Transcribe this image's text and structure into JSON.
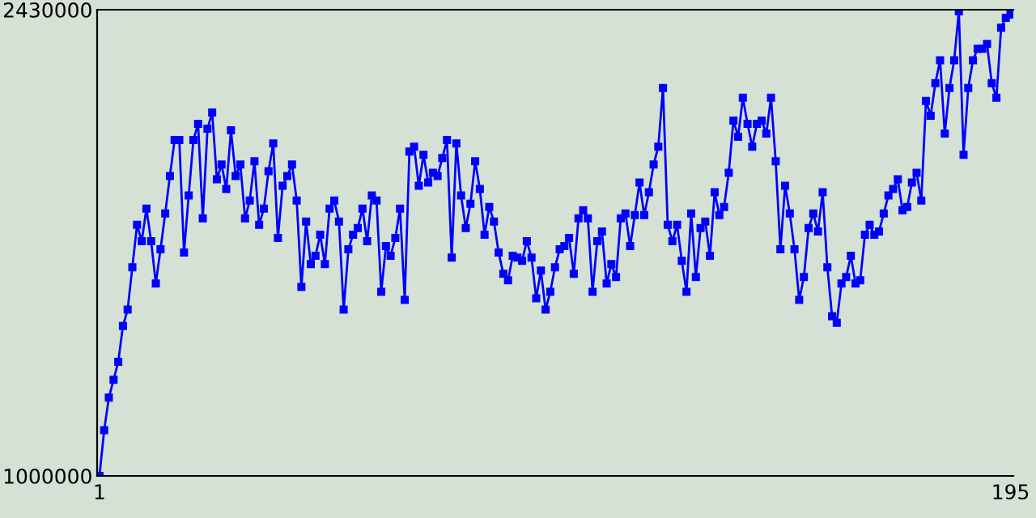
{
  "chart_data": {
    "type": "line",
    "x": [
      1,
      2,
      3,
      4,
      5,
      6,
      7,
      8,
      9,
      10,
      11,
      12,
      13,
      14,
      15,
      16,
      17,
      18,
      19,
      20,
      21,
      22,
      23,
      24,
      25,
      26,
      27,
      28,
      29,
      30,
      31,
      32,
      33,
      34,
      35,
      36,
      37,
      38,
      39,
      40,
      41,
      42,
      43,
      44,
      45,
      46,
      47,
      48,
      49,
      50,
      51,
      52,
      53,
      54,
      55,
      56,
      57,
      58,
      59,
      60,
      61,
      62,
      63,
      64,
      65,
      66,
      67,
      68,
      69,
      70,
      71,
      72,
      73,
      74,
      75,
      76,
      77,
      78,
      79,
      80,
      81,
      82,
      83,
      84,
      85,
      86,
      87,
      88,
      89,
      90,
      91,
      92,
      93,
      94,
      95,
      96,
      97,
      98,
      99,
      100,
      101,
      102,
      103,
      104,
      105,
      106,
      107,
      108,
      109,
      110,
      111,
      112,
      113,
      114,
      115,
      116,
      117,
      118,
      119,
      120,
      121,
      122,
      123,
      124,
      125,
      126,
      127,
      128,
      129,
      130,
      131,
      132,
      133,
      134,
      135,
      136,
      137,
      138,
      139,
      140,
      141,
      142,
      143,
      144,
      145,
      146,
      147,
      148,
      149,
      150,
      151,
      152,
      153,
      154,
      155,
      156,
      157,
      158,
      159,
      160,
      161,
      162,
      163,
      164,
      165,
      166,
      167,
      168,
      169,
      170,
      171,
      172,
      173,
      174,
      175,
      176,
      177,
      178,
      179,
      180,
      181,
      182,
      183,
      184,
      185,
      186,
      187,
      188,
      189,
      190,
      191,
      192,
      193,
      194,
      195
    ],
    "series": [
      {
        "color": "#0000ff",
        "values": [
          1000000,
          1140000,
          1240000,
          1295000,
          1350000,
          1460000,
          1510000,
          1640000,
          1770000,
          1720000,
          1820000,
          1720000,
          1590000,
          1695000,
          1805000,
          1920000,
          2030000,
          2030000,
          1685000,
          1860000,
          2030000,
          2080000,
          1790000,
          2065000,
          2115000,
          1910000,
          1955000,
          1880000,
          2060000,
          1920000,
          1955000,
          1790000,
          1845000,
          1965000,
          1770000,
          1820000,
          1935000,
          2020000,
          1730000,
          1890000,
          1920000,
          1955000,
          1845000,
          1580000,
          1780000,
          1650000,
          1675000,
          1740000,
          1650000,
          1820000,
          1845000,
          1780000,
          1510000,
          1695000,
          1740000,
          1760000,
          1820000,
          1720000,
          1860000,
          1845000,
          1565000,
          1705000,
          1675000,
          1730000,
          1820000,
          1540000,
          1995000,
          2010000,
          1890000,
          1985000,
          1900000,
          1930000,
          1920000,
          1975000,
          2030000,
          1670000,
          2020000,
          1860000,
          1760000,
          1835000,
          1965000,
          1880000,
          1740000,
          1825000,
          1780000,
          1685000,
          1620000,
          1600000,
          1675000,
          1670000,
          1660000,
          1720000,
          1670000,
          1545000,
          1630000,
          1510000,
          1565000,
          1640000,
          1695000,
          1705000,
          1730000,
          1620000,
          1790000,
          1815000,
          1790000,
          1565000,
          1720000,
          1750000,
          1590000,
          1650000,
          1610000,
          1790000,
          1805000,
          1705000,
          1800000,
          1900000,
          1800000,
          1870000,
          1955000,
          2010000,
          2190000,
          1770000,
          1720000,
          1770000,
          1660000,
          1565000,
          1805000,
          1610000,
          1760000,
          1780000,
          1675000,
          1870000,
          1800000,
          1825000,
          1930000,
          2090000,
          2040000,
          2160000,
          2080000,
          2010000,
          2080000,
          2090000,
          2050000,
          2160000,
          1965000,
          1695000,
          1890000,
          1805000,
          1695000,
          1540000,
          1610000,
          1760000,
          1805000,
          1750000,
          1870000,
          1640000,
          1490000,
          1470000,
          1590000,
          1610000,
          1675000,
          1590000,
          1600000,
          1740000,
          1770000,
          1740000,
          1750000,
          1805000,
          1860000,
          1880000,
          1910000,
          1815000,
          1825000,
          1900000,
          1930000,
          1845000,
          2150000,
          2105000,
          2205000,
          2275000,
          2050000,
          2190000,
          2275000,
          2425000,
          1985000,
          2190000,
          2275000,
          2310000,
          2310000,
          2325000,
          2205000,
          2160000,
          2375000,
          2405000,
          2415000
        ]
      }
    ],
    "xlim": [
      0.5,
      195.6
    ],
    "xticks": [
      1,
      195
    ],
    "ylim": [
      1000000,
      2430000
    ],
    "yticks": [
      1000000,
      2430000
    ],
    "marker": "square",
    "line_style": "solid",
    "grid": false,
    "legend": false
  }
}
